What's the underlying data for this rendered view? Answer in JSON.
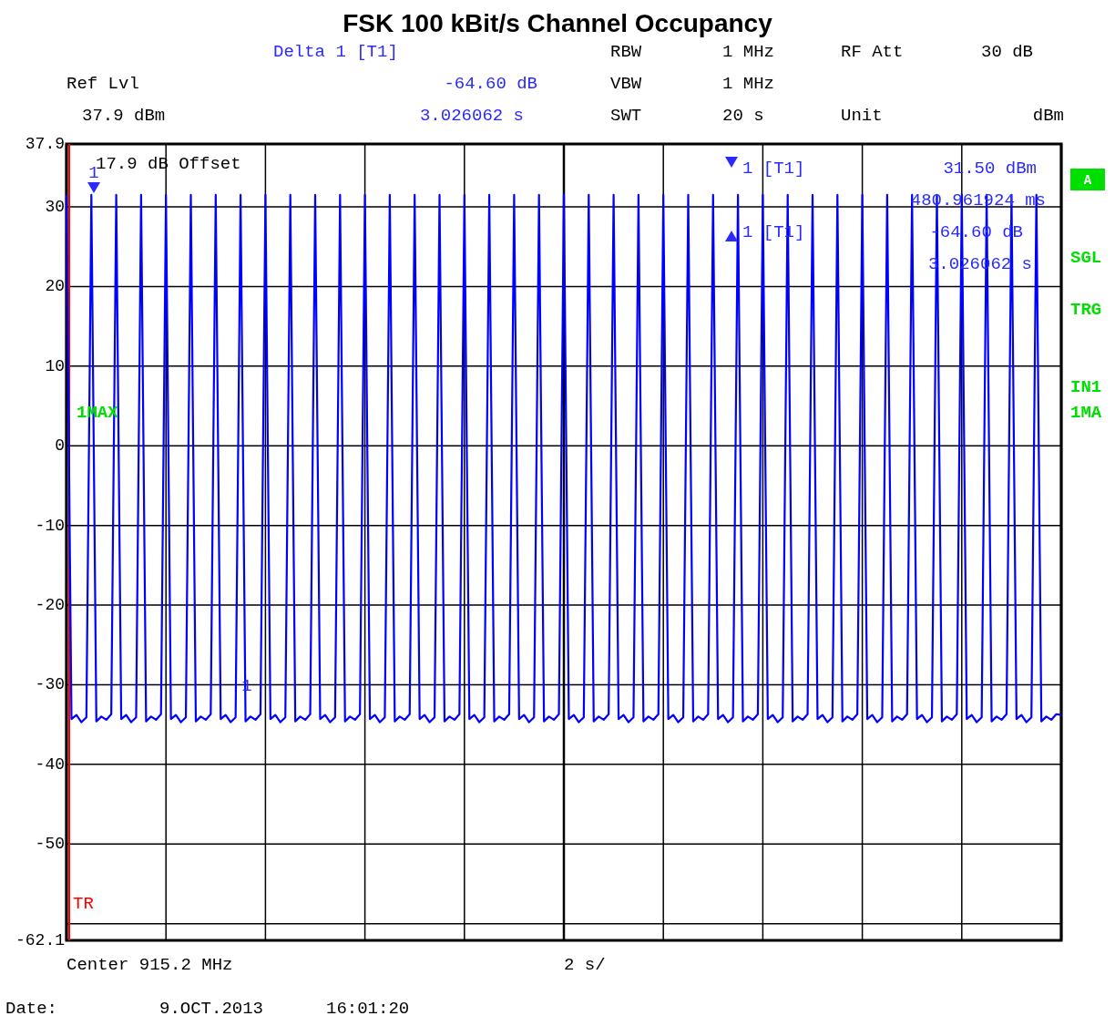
{
  "chart_data": {
    "type": "line",
    "title": "FSK 100 kBit/s Channel Occupancy",
    "categories": [
      null,
      null,
      null,
      null,
      null,
      null,
      null,
      null,
      null,
      null,
      null,
      null,
      null,
      null,
      null,
      null,
      null,
      null,
      null,
      null,
      null,
      null,
      null,
      null,
      null,
      null,
      null,
      null,
      null,
      null,
      null,
      null,
      null,
      null,
      null,
      null,
      null,
      null,
      null,
      null,
      null,
      null,
      null,
      null,
      null,
      null,
      null,
      null,
      null,
      null,
      null,
      null,
      null,
      null,
      null,
      null,
      null,
      null,
      null,
      null,
      null,
      null,
      null,
      null,
      null,
      null,
      null,
      null,
      null,
      null,
      null,
      null,
      null,
      null,
      null,
      null,
      null,
      null,
      null,
      null,
      null,
      null,
      null,
      null,
      null,
      null,
      null,
      null,
      null,
      null,
      null,
      null,
      null,
      null,
      null,
      null,
      null,
      null,
      null,
      null,
      null,
      null,
      null,
      null,
      null,
      null,
      null,
      null,
      null,
      null,
      null,
      null,
      null,
      null,
      null,
      null,
      null,
      null,
      null,
      null,
      null,
      null,
      null,
      null,
      null,
      null,
      null,
      null,
      null,
      null,
      null,
      null,
      null,
      null,
      null,
      null,
      null,
      null,
      null,
      null,
      null,
      null,
      null,
      null,
      null,
      null,
      null,
      null,
      null,
      null,
      null,
      null,
      null,
      null,
      null,
      null,
      null,
      null,
      null,
      null,
      null,
      null,
      null,
      null,
      null,
      null,
      null,
      null,
      null,
      null,
      null,
      null,
      null,
      null,
      null,
      null,
      null,
      null,
      null,
      null,
      null,
      null,
      null,
      null,
      null,
      null,
      null,
      null,
      null,
      null,
      null,
      null,
      null,
      null,
      null,
      null,
      null,
      null,
      null,
      null,
      null
    ],
    "ylim": [
      -62.1,
      37.9
    ],
    "yticks": [
      37.9,
      30,
      20,
      10,
      0,
      -10,
      -20,
      -30,
      -40,
      -50,
      {
        "value": -60,
        "label": null
      },
      -62.1
    ],
    "tick_labels": "y",
    "grid": true,
    "marker": "none",
    "line_style": "solid",
    "series": [
      {
        "color": "#0000ff",
        "values": [
          31.5,
          -34.3,
          -33.8,
          -34.7,
          -34.1,
          31.5,
          -34.6,
          -34.0,
          -34.4,
          -33.7,
          31.5,
          -34.3,
          -33.8,
          -34.7,
          -34.1,
          31.5,
          -34.6,
          -34.0,
          -34.4,
          -33.7,
          31.5,
          -34.3,
          -33.8,
          -34.7,
          -34.1,
          31.5,
          -34.6,
          -34.0,
          -34.4,
          -33.7,
          31.5,
          -34.3,
          -33.8,
          -34.7,
          -34.1,
          31.5,
          -34.6,
          -34.0,
          -34.4,
          -33.7,
          31.5,
          -34.3,
          -33.8,
          -34.7,
          -34.1,
          31.5,
          -34.6,
          -34.0,
          -34.4,
          -33.7,
          31.5,
          -34.3,
          -33.8,
          -34.7,
          -34.1,
          31.5,
          -34.6,
          -34.0,
          -34.4,
          -33.7,
          31.5,
          -34.3,
          -33.8,
          -34.7,
          -34.1,
          31.5,
          -34.6,
          -34.0,
          -34.4,
          -33.7,
          31.5,
          -34.3,
          -33.8,
          -34.7,
          -34.1,
          31.5,
          -34.6,
          -34.0,
          -34.4,
          -33.7,
          31.5,
          -34.3,
          -33.8,
          -34.7,
          -34.1,
          31.5,
          -34.6,
          -34.0,
          -34.4,
          -33.7,
          31.5,
          -34.3,
          -33.8,
          -34.7,
          -34.1,
          31.5,
          -34.6,
          -34.0,
          -34.4,
          -33.7,
          31.5,
          -34.3,
          -33.8,
          -34.7,
          -34.1,
          31.5,
          -34.6,
          -34.0,
          -34.4,
          -33.7,
          31.5,
          -34.3,
          -33.8,
          -34.7,
          -34.1,
          31.5,
          -34.6,
          -34.0,
          -34.4,
          -33.7,
          31.5,
          -34.3,
          -33.8,
          -34.7,
          -34.1,
          31.5,
          -34.6,
          -34.0,
          -34.4,
          -33.7,
          31.5,
          -34.3,
          -33.8,
          -34.7,
          -34.1,
          31.5,
          -34.6,
          -34.0,
          -34.4,
          -33.7,
          31.5,
          -34.3,
          -33.8,
          -34.7,
          -34.1,
          31.5,
          -34.6,
          -34.0,
          -34.4,
          -33.7,
          31.5,
          -34.3,
          -33.8,
          -34.7,
          -34.1,
          31.5,
          -34.6,
          -34.0,
          -34.4,
          -33.7,
          31.5,
          -34.3,
          -33.8,
          -34.7,
          -34.1,
          31.5,
          -34.6,
          -34.0,
          -34.4,
          -33.7,
          31.5,
          -34.3,
          -33.8,
          -34.7,
          -34.1,
          31.5,
          -34.6,
          -34.0,
          -34.4,
          -33.7,
          31.5,
          -34.3,
          -33.8,
          -34.7,
          -34.1,
          31.5,
          -34.6,
          -34.0,
          -34.4,
          -33.7,
          31.5,
          -34.3,
          -33.8,
          -34.7,
          -34.1,
          31.5,
          -34.6,
          -34.0,
          -34.4,
          -33.7,
          -33.8
        ]
      }
    ],
    "annotations": [
      "Delta 1 [T1]",
      "-64.60 dB",
      "3.026062 s",
      "RBW",
      "1 MHz",
      "RF Att",
      "30 dB",
      "Ref Lvl",
      "VBW",
      "1 MHz",
      "37.9 dBm",
      "SWT",
      "20 s",
      "Unit",
      "dBm",
      "17.9 dB Offset",
      "1 [T1]",
      "31.50 dBm",
      "480.961924 ms",
      "1 [T1]",
      "-64.60 dB",
      "3.026062 s",
      "1MAX",
      "A",
      "SGL",
      "TRG",
      "IN1",
      "1MA",
      "Center 915.2 MHz",
      "2 s/",
      "Date:",
      "9.OCT.2013",
      "16:01:20",
      "1",
      "1",
      "TR"
    ]
  }
}
